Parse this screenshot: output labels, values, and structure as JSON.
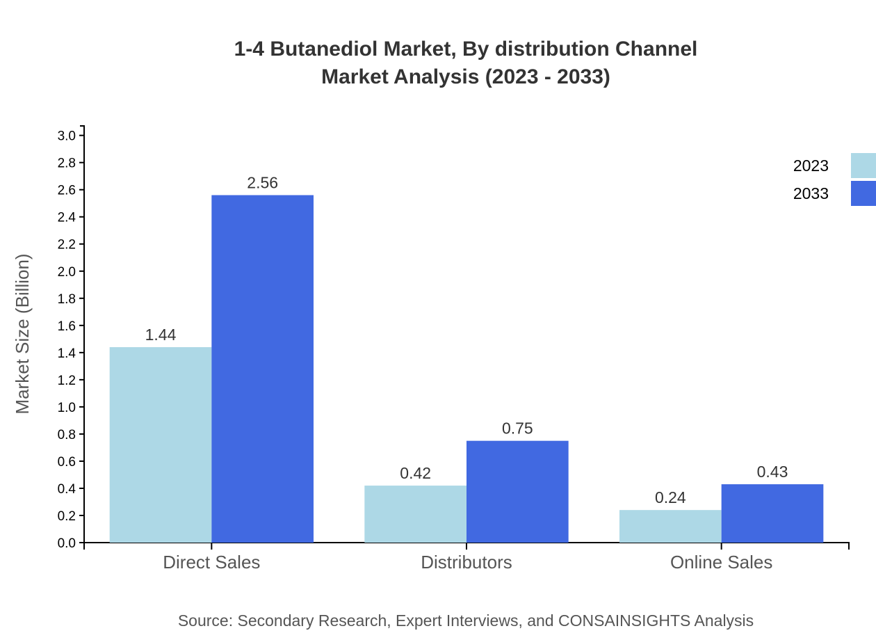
{
  "chart_data": {
    "type": "bar",
    "title": [
      "1-4 Butanediol Market, By distribution Channel",
      "Market Analysis (2023 - 2033)"
    ],
    "xlabel": "",
    "ylabel": "Market Size (Billion)",
    "categories": [
      "Direct Sales",
      "Distributors",
      "Online Sales"
    ],
    "series": [
      {
        "name": "2023",
        "values": [
          1.44,
          0.42,
          0.24
        ],
        "color": "#add8e6"
      },
      {
        "name": "2033",
        "values": [
          2.56,
          0.75,
          0.43
        ],
        "color": "#4169e1"
      }
    ],
    "ylim": [
      0,
      3.07
    ],
    "yticks": [
      "0.0",
      "0.2",
      "0.4",
      "0.6",
      "0.8",
      "1.0",
      "1.2",
      "1.4",
      "1.6",
      "1.8",
      "2.0",
      "2.2",
      "2.4",
      "2.6",
      "2.8",
      "3.0"
    ],
    "grid": false,
    "legend": "top-right",
    "source": "Source: Secondary Research, Expert Interviews, and CONSAINSIGHTS Analysis"
  }
}
